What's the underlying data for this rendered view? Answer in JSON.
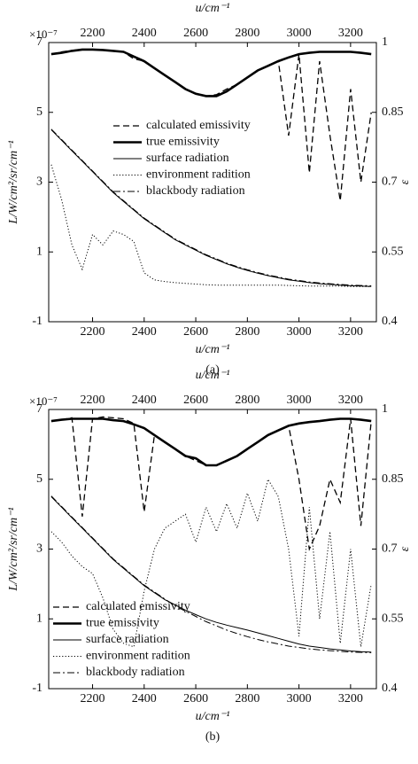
{
  "chart_data": [
    {
      "type": "line",
      "title": "(a)",
      "xlabel": "u/cm⁻¹",
      "ylabel": "L/W/cm²/sr/cm⁻¹",
      "y2label": "ε",
      "y_multiplier": "×10⁻⁷",
      "xlim": [
        2030,
        3300
      ],
      "xticks": [
        2200,
        2400,
        2600,
        2800,
        3000,
        3200
      ],
      "ylim": [
        -1,
        7
      ],
      "yticks": [
        -1,
        1,
        3,
        5,
        7
      ],
      "y2lim": [
        0.4,
        1
      ],
      "y2ticks": [
        0.4,
        0.55,
        0.7,
        0.85,
        1
      ],
      "legend": "center",
      "x": [
        2040,
        2080,
        2120,
        2160,
        2200,
        2240,
        2280,
        2320,
        2360,
        2400,
        2440,
        2480,
        2520,
        2560,
        2600,
        2640,
        2680,
        2720,
        2760,
        2800,
        2840,
        2880,
        2920,
        2960,
        3000,
        3040,
        3080,
        3120,
        3160,
        3200,
        3240,
        3280
      ],
      "series": [
        {
          "name": "calculated emissivity",
          "color": "#000",
          "style": "dashed",
          "width": 1.3,
          "axis": "y2",
          "values": [
            0.975,
            0.98,
            0.983,
            0.985,
            0.985,
            0.984,
            0.982,
            0.98,
            0.965,
            0.96,
            0.945,
            0.93,
            0.915,
            0.9,
            0.89,
            0.885,
            0.888,
            0.9,
            0.91,
            0.925,
            0.94,
            0.95,
            0.96,
            0.8,
            0.975,
            0.72,
            0.96,
            0.8,
            0.66,
            0.9,
            0.7,
            0.85
          ]
        },
        {
          "name": "true emissivity",
          "color": "#000",
          "style": "solid",
          "width": 2.6,
          "axis": "y2",
          "values": [
            0.975,
            0.978,
            0.982,
            0.985,
            0.985,
            0.984,
            0.982,
            0.98,
            0.97,
            0.96,
            0.945,
            0.93,
            0.915,
            0.9,
            0.89,
            0.885,
            0.885,
            0.895,
            0.91,
            0.925,
            0.94,
            0.95,
            0.96,
            0.968,
            0.975,
            0.978,
            0.98,
            0.98,
            0.98,
            0.98,
            0.978,
            0.975
          ]
        },
        {
          "name": "surface radiation",
          "color": "#000",
          "style": "solid",
          "width": 1,
          "values": [
            4.5,
            4.2,
            3.9,
            3.6,
            3.3,
            3.0,
            2.7,
            2.45,
            2.2,
            1.95,
            1.75,
            1.55,
            1.35,
            1.2,
            1.05,
            0.9,
            0.78,
            0.66,
            0.56,
            0.47,
            0.39,
            0.32,
            0.26,
            0.2,
            0.16,
            0.12,
            0.09,
            0.07,
            0.05,
            0.03,
            0.02,
            0.01
          ]
        },
        {
          "name": "environment radition",
          "color": "#000",
          "style": "dotted",
          "width": 1,
          "values": [
            3.5,
            2.5,
            1.2,
            0.5,
            1.5,
            1.2,
            1.6,
            1.5,
            1.3,
            0.4,
            0.2,
            0.15,
            0.12,
            0.1,
            0.08,
            0.06,
            0.05,
            0.05,
            0.05,
            0.05,
            0.05,
            0.05,
            0.05,
            0.04,
            0.03,
            0.02,
            0.02,
            0.02,
            0.02,
            0.01,
            0.01,
            0.01
          ]
        },
        {
          "name": "blackbody radiation",
          "color": "#000",
          "style": "dashdot",
          "width": 1,
          "values": [
            4.52,
            4.22,
            3.92,
            3.62,
            3.32,
            3.02,
            2.72,
            2.47,
            2.22,
            1.97,
            1.77,
            1.57,
            1.37,
            1.22,
            1.07,
            0.92,
            0.8,
            0.68,
            0.58,
            0.49,
            0.41,
            0.34,
            0.28,
            0.22,
            0.18,
            0.14,
            0.11,
            0.09,
            0.07,
            0.05,
            0.04,
            0.03
          ]
        }
      ]
    },
    {
      "type": "line",
      "title": "(b)",
      "xlabel": "u/cm⁻¹",
      "ylabel": "L/W/cm²/sr/cm⁻¹",
      "y2label": "ε",
      "y_multiplier": "×10⁻⁷",
      "xlim": [
        2030,
        3300
      ],
      "xticks": [
        2200,
        2400,
        2600,
        2800,
        3000,
        3200
      ],
      "ylim": [
        -1,
        7
      ],
      "yticks": [
        -1,
        1,
        3,
        5,
        7
      ],
      "y2lim": [
        0.4,
        1
      ],
      "y2ticks": [
        0.4,
        0.55,
        0.7,
        0.85,
        1
      ],
      "legend": "lower left",
      "x": [
        2040,
        2080,
        2120,
        2160,
        2200,
        2240,
        2280,
        2320,
        2360,
        2400,
        2440,
        2480,
        2520,
        2560,
        2600,
        2640,
        2680,
        2720,
        2760,
        2800,
        2840,
        2880,
        2920,
        2960,
        3000,
        3040,
        3080,
        3120,
        3160,
        3200,
        3240,
        3280
      ],
      "series": [
        {
          "name": "calculated emissivity",
          "color": "#000",
          "style": "dashed",
          "width": 1.3,
          "axis": "y2",
          "values": [
            0.975,
            0.978,
            0.982,
            0.77,
            0.98,
            0.984,
            0.982,
            0.98,
            0.97,
            0.78,
            0.945,
            0.93,
            0.915,
            0.9,
            0.89,
            0.88,
            0.88,
            0.89,
            0.9,
            0.915,
            0.93,
            0.945,
            0.955,
            0.965,
            0.85,
            0.7,
            0.75,
            0.85,
            0.8,
            0.98,
            0.75,
            0.975
          ]
        },
        {
          "name": "true emissivity",
          "color": "#000",
          "style": "solid",
          "width": 2.6,
          "axis": "y2",
          "values": [
            0.975,
            0.978,
            0.98,
            0.98,
            0.98,
            0.98,
            0.977,
            0.975,
            0.968,
            0.96,
            0.945,
            0.93,
            0.915,
            0.9,
            0.895,
            0.88,
            0.88,
            0.89,
            0.9,
            0.915,
            0.93,
            0.945,
            0.955,
            0.965,
            0.97,
            0.973,
            0.975,
            0.978,
            0.98,
            0.98,
            0.978,
            0.975
          ]
        },
        {
          "name": "surface radiation",
          "color": "#000",
          "style": "solid",
          "width": 1,
          "values": [
            4.5,
            4.2,
            3.9,
            3.6,
            3.3,
            3.0,
            2.7,
            2.45,
            2.2,
            1.95,
            1.75,
            1.55,
            1.4,
            1.25,
            1.12,
            1.0,
            0.9,
            0.82,
            0.75,
            0.68,
            0.6,
            0.52,
            0.44,
            0.36,
            0.28,
            0.22,
            0.18,
            0.14,
            0.11,
            0.08,
            0.06,
            0.05
          ]
        },
        {
          "name": "environment radition",
          "color": "#000",
          "style": "dotted",
          "width": 1,
          "values": [
            3.5,
            3.2,
            2.8,
            2.5,
            2.3,
            1.6,
            0.7,
            0.3,
            0.2,
            1.8,
            3.0,
            3.6,
            3.8,
            4.0,
            3.2,
            4.2,
            3.5,
            4.3,
            3.6,
            4.6,
            3.8,
            5.0,
            4.5,
            3.0,
            0.5,
            4.2,
            1.0,
            3.5,
            0.3,
            3.0,
            0.2,
            2.0
          ]
        },
        {
          "name": "blackbody radiation",
          "color": "#000",
          "style": "dashdot",
          "width": 1,
          "values": [
            4.52,
            4.22,
            3.92,
            3.62,
            3.32,
            3.02,
            2.72,
            2.47,
            2.22,
            1.97,
            1.77,
            1.57,
            1.37,
            1.22,
            1.07,
            0.92,
            0.8,
            0.68,
            0.58,
            0.49,
            0.41,
            0.34,
            0.28,
            0.22,
            0.18,
            0.14,
            0.11,
            0.09,
            0.07,
            0.05,
            0.04,
            0.03
          ]
        }
      ]
    }
  ]
}
